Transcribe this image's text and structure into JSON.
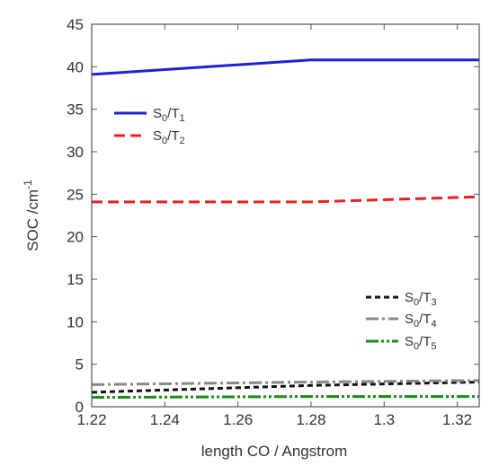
{
  "chart_data": {
    "type": "line",
    "title": "",
    "xlabel": "length CO /  Angstrom",
    "ylabel": {
      "base": "SOC /cm",
      "sup": "-1"
    },
    "xlim": [
      1.22,
      1.326
    ],
    "ylim": [
      0,
      45
    ],
    "x_ticks": [
      {
        "value": 1.22,
        "label": "1.22"
      },
      {
        "value": 1.24,
        "label": "1.24"
      },
      {
        "value": 1.26,
        "label": "1.26"
      },
      {
        "value": 1.28,
        "label": "1.28"
      },
      {
        "value": 1.3,
        "label": "1.3"
      },
      {
        "value": 1.32,
        "label": "1.32"
      }
    ],
    "y_ticks": [
      {
        "value": 0,
        "label": "0"
      },
      {
        "value": 5,
        "label": "5"
      },
      {
        "value": 10,
        "label": "10"
      },
      {
        "value": 15,
        "label": "15"
      },
      {
        "value": 20,
        "label": "20"
      },
      {
        "value": 25,
        "label": "25"
      },
      {
        "value": 30,
        "label": "30"
      },
      {
        "value": 35,
        "label": "35"
      },
      {
        "value": 40,
        "label": "40"
      },
      {
        "value": 45,
        "label": "45"
      }
    ],
    "grid": false,
    "legend": [
      {
        "placement": "upper-left",
        "entries": [
          0,
          1
        ]
      },
      {
        "placement": "lower-right",
        "entries": [
          2,
          3,
          4
        ]
      }
    ],
    "series": [
      {
        "name": {
          "s": "S",
          "s_sub": "0",
          "sep": "/",
          "t": "T",
          "t_sub": "1"
        },
        "color": "#1f1fd6",
        "dash": "solid",
        "x": [
          1.22,
          1.28,
          1.326
        ],
        "y": [
          39.1,
          40.8,
          40.8
        ]
      },
      {
        "name": {
          "s": "S",
          "s_sub": "0",
          "sep": "/",
          "t": "T",
          "t_sub": "2"
        },
        "color": "#e8201e",
        "dash": "dash",
        "x": [
          1.22,
          1.28,
          1.326
        ],
        "y": [
          24.1,
          24.1,
          24.7
        ]
      },
      {
        "name": {
          "s": "S",
          "s_sub": "0",
          "sep": "/",
          "t": "T",
          "t_sub": "3"
        },
        "color": "#111111",
        "dash": "shortdash",
        "x": [
          1.22,
          1.28,
          1.326
        ],
        "y": [
          1.7,
          2.5,
          2.9
        ]
      },
      {
        "name": {
          "s": "S",
          "s_sub": "0",
          "sep": "/",
          "t": "T",
          "t_sub": "4"
        },
        "color": "#888888",
        "dash": "dashdot",
        "x": [
          1.22,
          1.28,
          1.326
        ],
        "y": [
          2.6,
          2.9,
          3.1
        ]
      },
      {
        "name": {
          "s": "S",
          "s_sub": "0",
          "sep": "/",
          "t": "T",
          "t_sub": "5"
        },
        "color": "#1a8a1a",
        "dash": "dashdotdot",
        "x": [
          1.22,
          1.28,
          1.326
        ],
        "y": [
          1.1,
          1.2,
          1.2
        ]
      }
    ]
  }
}
